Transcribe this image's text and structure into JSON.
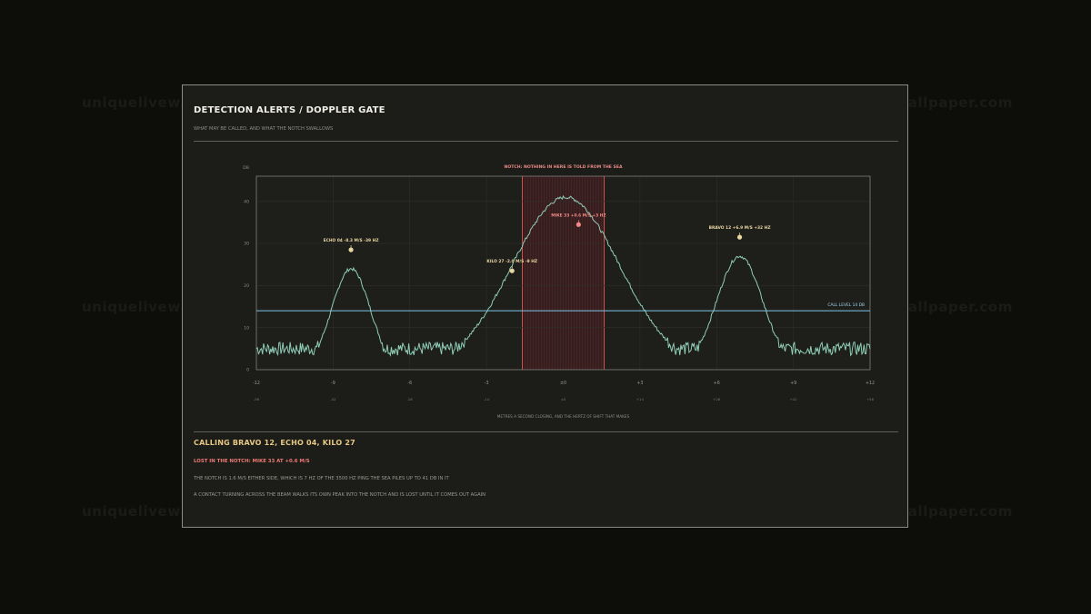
{
  "watermark": "uniquelivewallpaper.com",
  "header": {
    "title": "DETECTION ALERTS / DOPPLER GATE",
    "subtitle": "WHAT MAY BE CALLED, AND WHAT THE NOTCH SWALLOWS"
  },
  "chart_data": {
    "type": "line",
    "ylabel": "DB",
    "xlabel": "METRES A SECOND CLOSING, AND THE HERTZ OF SHIFT THAT MAKES",
    "xlim": [
      -12,
      12
    ],
    "ylim": [
      0,
      46
    ],
    "x_ticks": [
      {
        "value": -12,
        "label": "-12",
        "hz": "-56"
      },
      {
        "value": -9,
        "label": "-9",
        "hz": "-42"
      },
      {
        "value": -6,
        "label": "-6",
        "hz": "-28"
      },
      {
        "value": -3,
        "label": "-3",
        "hz": "-14"
      },
      {
        "value": 0,
        "label": "±0",
        "hz": "±0"
      },
      {
        "value": 3,
        "label": "+3",
        "hz": "+14"
      },
      {
        "value": 6,
        "label": "+6",
        "hz": "+28"
      },
      {
        "value": 9,
        "label": "+9",
        "hz": "+42"
      },
      {
        "value": 12,
        "label": "+12",
        "hz": "+56"
      }
    ],
    "y_ticks": [
      0,
      10,
      20,
      30,
      40
    ],
    "notch": {
      "from": -1.6,
      "to": 1.6,
      "label": "NOTCH: NOTHING IN HERE IS TOLD FROM THE SEA"
    },
    "call_level": {
      "value": 14,
      "label": "CALL LEVEL 14 DB"
    },
    "noise_floor": 5,
    "peaks": [
      {
        "center": -8.3,
        "height": 24,
        "width": 0.75
      },
      {
        "center": 0.1,
        "height": 41,
        "width": 2.1
      },
      {
        "center": 6.9,
        "height": 27,
        "width": 0.9
      }
    ],
    "contacts": [
      {
        "name": "ECHO 04",
        "label": "ECHO 04 -8.3 M/S -39 HZ",
        "x": -8.3,
        "y": 28.5,
        "color": "#e9d7a2"
      },
      {
        "name": "KILO 27",
        "label": "KILO 27 -2.0 M/S -9 HZ",
        "x": -2.0,
        "y": 23.5,
        "color": "#e9d7a2"
      },
      {
        "name": "MIKE 33",
        "label": "MIKE 33 +0.6 M/S +3 HZ",
        "x": 0.6,
        "y": 34.5,
        "color": "#f08a86"
      },
      {
        "name": "BRAVO 12",
        "label": "BRAVO 12 +6.9 M/S +32 HZ",
        "x": 6.9,
        "y": 31.5,
        "color": "#e9d7a2"
      }
    ],
    "colors": {
      "line": "#8fcdb8",
      "call_level": "#7ec7e6",
      "notch_edge": "#e4574f",
      "notch_fill": "#3b1e1f",
      "grid": "#2e2e2b",
      "axis": "#8b8d87"
    }
  },
  "summary": {
    "calling": "CALLING BRAVO 12, ECHO 04, KILO 27",
    "lost": "LOST IN THE NOTCH: MIKE 33 AT +0.6 M/S",
    "note1": "THE NOTCH IS 1.6 M/S EITHER SIDE, WHICH IS 7 HZ OF THE 3500 HZ PING   THE SEA PILES UP TO 41 DB IN IT",
    "note2": "A CONTACT TURNING ACROSS THE BEAM WALKS ITS OWN PEAK INTO THE NOTCH AND IS LOST UNTIL IT COMES OUT AGAIN"
  }
}
